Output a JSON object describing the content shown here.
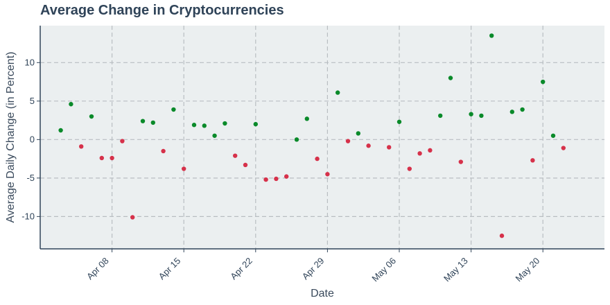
{
  "colors": {
    "positive": "#0a8a2a",
    "negative": "#d6314a",
    "plot_bg": "#ebeff0",
    "grid": "#b9bec2",
    "axis": "#2f4358"
  },
  "chart_data": {
    "type": "scatter",
    "title": "Average Change in Cryptocurrencies",
    "xlabel": "Date",
    "ylabel": "Average Daily Change (in Percent)",
    "xlim": [
      "2024-04-01",
      "2024-05-26"
    ],
    "ylim": [
      -14.2,
      14.8
    ],
    "grid": true,
    "x_tick_values": [
      "2024-04-08",
      "2024-04-15",
      "2024-04-22",
      "2024-04-29",
      "2024-05-06",
      "2024-05-13",
      "2024-05-20"
    ],
    "x_tick_labels": [
      "Apr 08",
      "Apr 15",
      "Apr 22",
      "Apr 29",
      "May 06",
      "May 13",
      "May 20"
    ],
    "y_ticks": [
      -10,
      -5,
      0,
      5,
      10
    ],
    "y_tick_labels": [
      "-10",
      "-5",
      "0",
      "5",
      "10"
    ],
    "points": [
      {
        "date": "2024-04-03",
        "value": 1.2
      },
      {
        "date": "2024-04-04",
        "value": 4.6
      },
      {
        "date": "2024-04-05",
        "value": -0.9
      },
      {
        "date": "2024-04-06",
        "value": 3.0
      },
      {
        "date": "2024-04-07",
        "value": -2.4
      },
      {
        "date": "2024-04-08",
        "value": -2.4
      },
      {
        "date": "2024-04-09",
        "value": -0.2
      },
      {
        "date": "2024-04-10",
        "value": -10.1
      },
      {
        "date": "2024-04-11",
        "value": 2.4
      },
      {
        "date": "2024-04-12",
        "value": 2.2
      },
      {
        "date": "2024-04-13",
        "value": -1.5
      },
      {
        "date": "2024-04-14",
        "value": 3.9
      },
      {
        "date": "2024-04-15",
        "value": -3.8
      },
      {
        "date": "2024-04-16",
        "value": 1.9
      },
      {
        "date": "2024-04-17",
        "value": 1.8
      },
      {
        "date": "2024-04-18",
        "value": 0.5
      },
      {
        "date": "2024-04-19",
        "value": 2.1
      },
      {
        "date": "2024-04-20",
        "value": -2.1
      },
      {
        "date": "2024-04-21",
        "value": -3.3
      },
      {
        "date": "2024-04-22",
        "value": 2.0
      },
      {
        "date": "2024-04-23",
        "value": -5.2
      },
      {
        "date": "2024-04-24",
        "value": -5.1
      },
      {
        "date": "2024-04-25",
        "value": -4.8
      },
      {
        "date": "2024-04-26",
        "value": 0.0
      },
      {
        "date": "2024-04-27",
        "value": 2.7
      },
      {
        "date": "2024-04-28",
        "value": -2.5
      },
      {
        "date": "2024-04-29",
        "value": -4.5
      },
      {
        "date": "2024-04-30",
        "value": 6.1
      },
      {
        "date": "2024-05-01",
        "value": -0.2
      },
      {
        "date": "2024-05-02",
        "value": 0.8
      },
      {
        "date": "2024-05-03",
        "value": -0.8
      },
      {
        "date": "2024-05-05",
        "value": -1.0
      },
      {
        "date": "2024-05-06",
        "value": 2.3
      },
      {
        "date": "2024-05-07",
        "value": -3.8
      },
      {
        "date": "2024-05-08",
        "value": -1.8
      },
      {
        "date": "2024-05-09",
        "value": -1.4
      },
      {
        "date": "2024-05-10",
        "value": 3.1
      },
      {
        "date": "2024-05-11",
        "value": 8.0
      },
      {
        "date": "2024-05-12",
        "value": -2.9
      },
      {
        "date": "2024-05-13",
        "value": 3.3
      },
      {
        "date": "2024-05-14",
        "value": 3.1
      },
      {
        "date": "2024-05-15",
        "value": 13.5
      },
      {
        "date": "2024-05-16",
        "value": -12.5
      },
      {
        "date": "2024-05-17",
        "value": 3.6
      },
      {
        "date": "2024-05-18",
        "value": 3.9
      },
      {
        "date": "2024-05-19",
        "value": -2.7
      },
      {
        "date": "2024-05-20",
        "value": 7.5
      },
      {
        "date": "2024-05-21",
        "value": 0.5
      },
      {
        "date": "2024-05-22",
        "value": -1.1
      }
    ]
  }
}
